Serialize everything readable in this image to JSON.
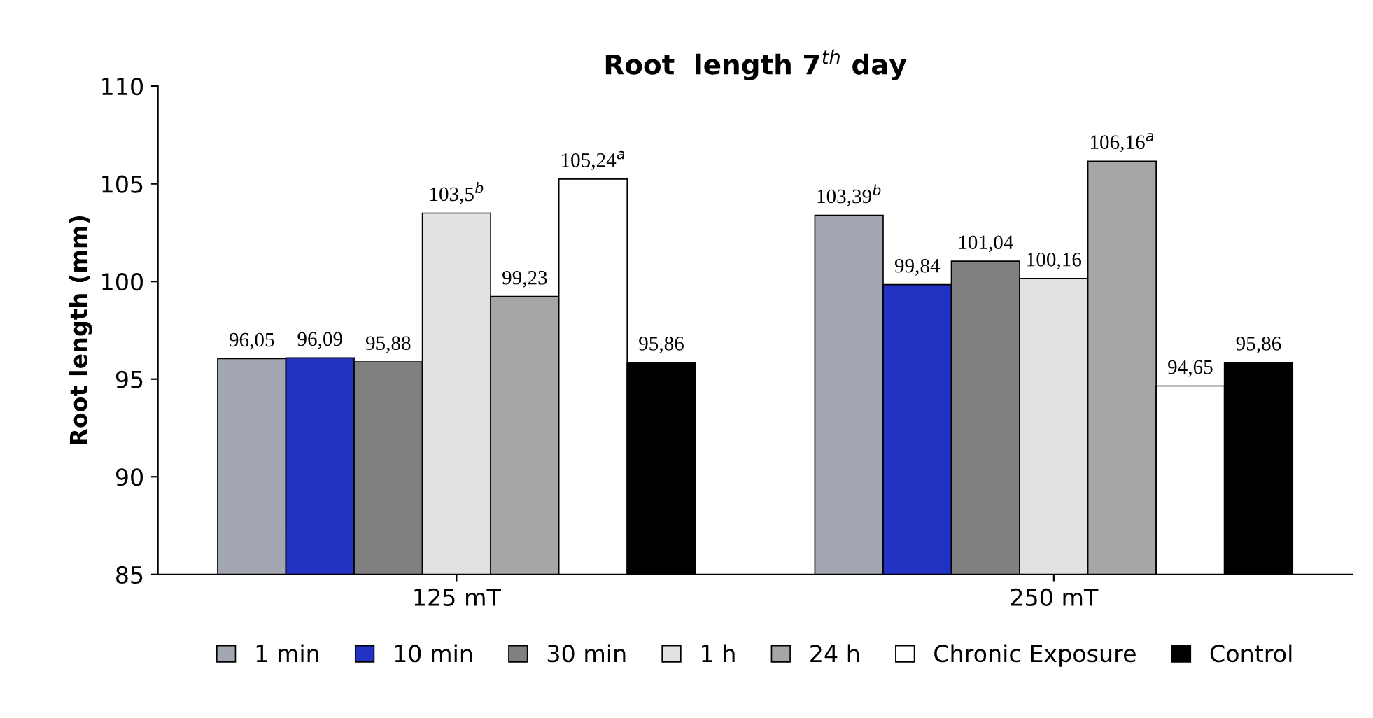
{
  "chart_data": {
    "type": "bar",
    "title": "Root  length 7$^{th}$ day",
    "ylabel": "Root length (mm)",
    "categories": [
      "125 mT",
      "250 mT"
    ],
    "series": [
      {
        "name": "1 min",
        "color": "#a3a7b3",
        "values": [
          96.05,
          103.39
        ],
        "value_labels": [
          "96,05",
          "103,39$^{b}$"
        ]
      },
      {
        "name": "10 min",
        "color": "#2233c4",
        "values": [
          96.09,
          99.84
        ],
        "value_labels": [
          "96,09",
          "99,84"
        ]
      },
      {
        "name": "30 min",
        "color": "#808080",
        "values": [
          95.88,
          101.04
        ],
        "value_labels": [
          "95,88",
          "101,04"
        ]
      },
      {
        "name": "1 h",
        "color": "#e2e2e2",
        "values": [
          103.5,
          100.16
        ],
        "value_labels": [
          "103,5$^{b}$",
          "100,16"
        ]
      },
      {
        "name": "24 h",
        "color": "#a6a6a6",
        "values": [
          99.23,
          106.16
        ],
        "value_labels": [
          "99,23",
          "106,16$^{a}$"
        ]
      },
      {
        "name": "Chronic Exposure",
        "color": "#ffffff",
        "values": [
          105.24,
          94.65
        ],
        "value_labels": [
          "105,24$^{a}$",
          "94,65"
        ]
      },
      {
        "name": "Control",
        "color": "#000000",
        "values": [
          95.86,
          95.86
        ],
        "value_labels": [
          "95,86",
          "95,86"
        ]
      }
    ],
    "ylim": [
      85,
      110
    ],
    "yticks": [
      85,
      90,
      95,
      100,
      105,
      110
    ],
    "grid": false,
    "legend": "bottom"
  }
}
